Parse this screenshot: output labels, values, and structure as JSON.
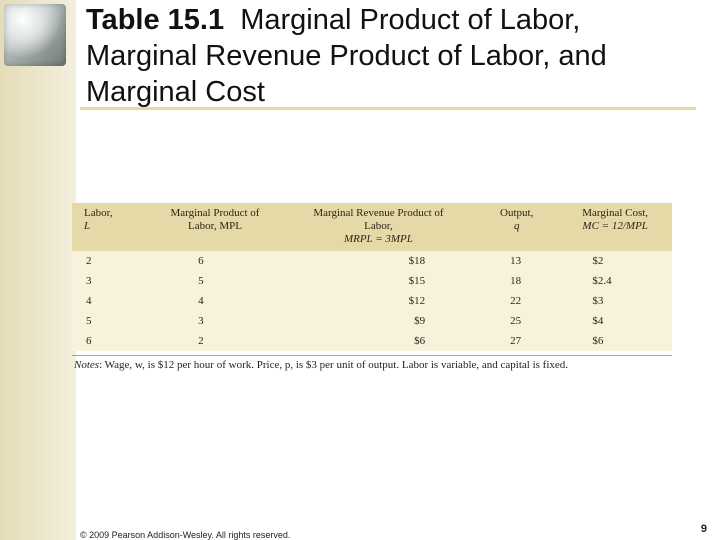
{
  "slide": {
    "title_bold": "Table 15.1",
    "title_rest": "Marginal Product of Labor, Marginal Revenue Product of Labor, and Marginal Cost",
    "footer": "© 2009 Pearson Addison-Wesley. All rights reserved.",
    "page_number": "9"
  },
  "table": {
    "headers": {
      "labor_line1": "Labor,",
      "labor_line2": "L",
      "mp_line1": "Marginal Product of",
      "mp_line2": "Labor, MPL",
      "mrp_line1": "Marginal Revenue Product of Labor,",
      "mrp_line2": "MRPL = 3MPL",
      "q_line1": "Output,",
      "q_line2": "q",
      "mc_line1": "Marginal Cost,",
      "mc_line2": "MC = 12/MPL"
    },
    "rows": [
      {
        "labor": "2",
        "mp": "6",
        "mrp": "$18",
        "q": "13",
        "mc": "$2"
      },
      {
        "labor": "3",
        "mp": "5",
        "mrp": "$15",
        "q": "18",
        "mc": "$2.4"
      },
      {
        "labor": "4",
        "mp": "4",
        "mrp": "$12",
        "q": "22",
        "mc": "$3"
      },
      {
        "labor": "5",
        "mp": "3",
        "mrp": "$9",
        "q": "25",
        "mc": "$4"
      },
      {
        "labor": "6",
        "mp": "2",
        "mrp": "$6",
        "q": "27",
        "mc": "$6"
      }
    ],
    "note_label": "Notes",
    "note_text": ": Wage, w, is $12 per hour of work. Price, p, is $3 per unit of output. Labor is variable, and capital is fixed."
  }
}
